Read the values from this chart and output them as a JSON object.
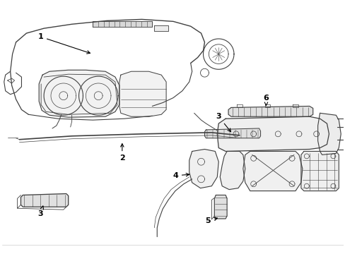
{
  "background_color": "#ffffff",
  "line_color": "#404040",
  "label_color": "#000000",
  "figure_width": 4.89,
  "figure_height": 3.6,
  "dpi": 100
}
